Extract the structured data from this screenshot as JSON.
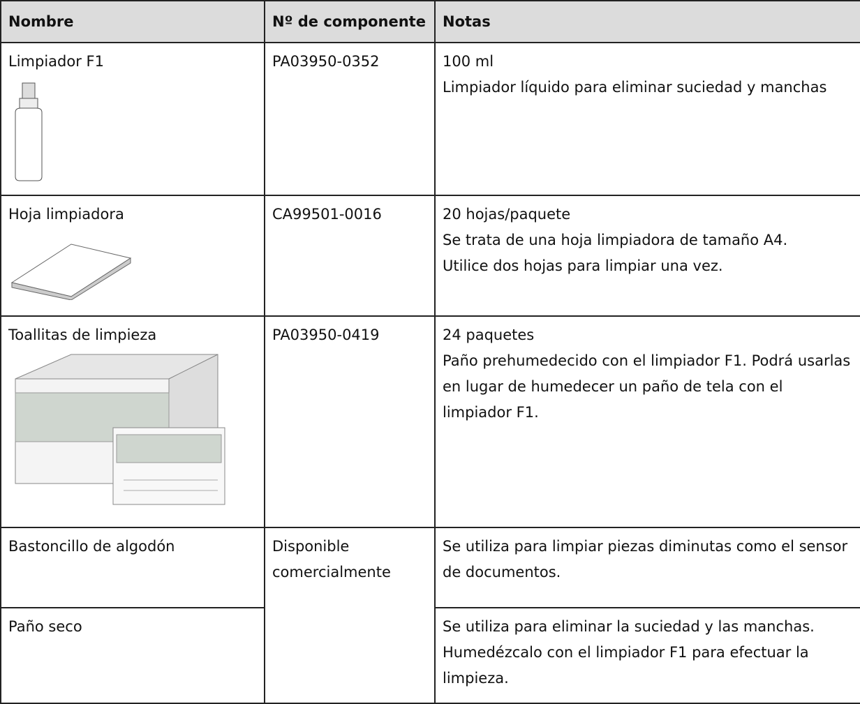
{
  "table": {
    "header": [
      "Nombre",
      "Nº de componente",
      "Notas"
    ],
    "rows": [
      {
        "name": "Limpiador F1",
        "part": "PA03950-0352",
        "notes": [
          "100 ml",
          "Limpiador líquido para eliminar suciedad y manchas"
        ]
      },
      {
        "name": "Hoja limpiadora",
        "part": "CA99501-0016",
        "notes": [
          "20 hojas/paquete",
          "Se trata de una hoja limpiadora de tamaño A4.",
          "Utilice dos hojas para limpiar una vez."
        ]
      },
      {
        "name": "Toallitas de limpieza",
        "part": "PA03950-0419",
        "notes": [
          "24 paquetes",
          "Paño prehumedecido con el limpiador F1. Podrá usarlas en lugar de humedecer un paño de tela con el limpiador F1."
        ]
      },
      {
        "name": "Bastoncillo de algodón",
        "part": "Disponible comercialmente",
        "notes": [
          "Se utiliza para limpiar piezas diminutas como el sensor de documentos."
        ]
      },
      {
        "name": "Paño seco",
        "notes": [
          "Se utiliza para eliminar la suciedad y las manchas.",
          "Humedézcalo con el limpiador F1 para efectuar la limpieza."
        ]
      }
    ]
  }
}
